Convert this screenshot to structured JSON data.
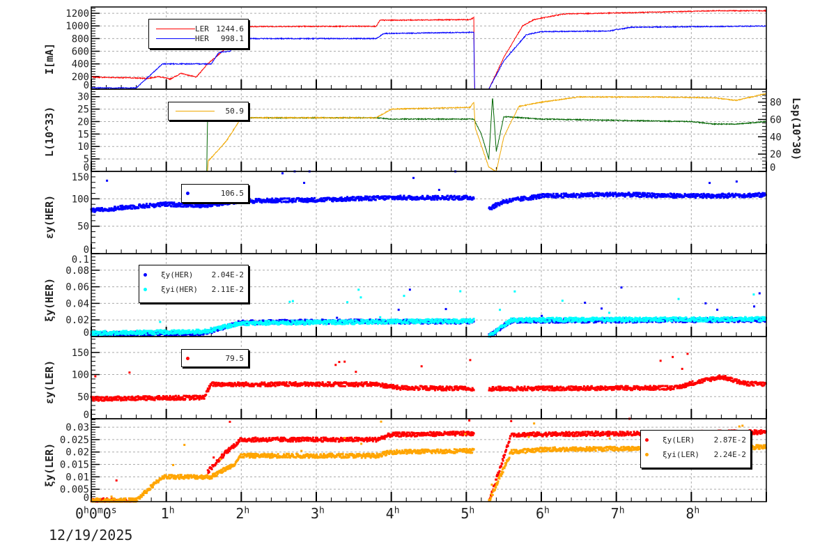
{
  "x_axis": {
    "unit": "h",
    "ticks": [
      "0",
      "1",
      "2",
      "3",
      "4",
      "5",
      "6",
      "7",
      "8"
    ],
    "origin_label": {
      "h": "0",
      "m": "0",
      "s": "0"
    },
    "date": "12/19/2025",
    "range_hours": [
      0,
      9
    ]
  },
  "chart_data": [
    {
      "type": "line",
      "ylabel": "I[mA]",
      "ylim": [
        0,
        1300
      ],
      "yticks": [
        0,
        200,
        400,
        600,
        800,
        1000,
        1200
      ],
      "legend": [
        {
          "name": "LER",
          "value": "1244.6",
          "color": "#ff0000"
        },
        {
          "name": "HER",
          "value": "998.1",
          "color": "#0000ff"
        }
      ],
      "series": [
        {
          "name": "LER",
          "color": "#ff0000",
          "points": [
            [
              0,
              190
            ],
            [
              0.5,
              180
            ],
            [
              0.75,
              170
            ],
            [
              0.9,
              200
            ],
            [
              1.05,
              160
            ],
            [
              1.2,
              250
            ],
            [
              1.4,
              190
            ],
            [
              1.55,
              400
            ],
            [
              1.75,
              600
            ],
            [
              1.9,
              800
            ],
            [
              2.0,
              990
            ],
            [
              3.8,
              995
            ],
            [
              3.85,
              1090
            ],
            [
              5.05,
              1100
            ],
            [
              5.1,
              1130
            ],
            [
              5.11,
              0
            ],
            [
              5.3,
              0
            ],
            [
              5.5,
              500
            ],
            [
              5.75,
              1000
            ],
            [
              5.9,
              1100
            ],
            [
              6.3,
              1190
            ],
            [
              7.2,
              1210
            ],
            [
              8.3,
              1240
            ],
            [
              9,
              1240
            ]
          ]
        },
        {
          "name": "HER",
          "color": "#0000ff",
          "points": [
            [
              0,
              20
            ],
            [
              0.6,
              20
            ],
            [
              0.95,
              400
            ],
            [
              1.6,
              400
            ],
            [
              1.7,
              580
            ],
            [
              1.85,
              600
            ],
            [
              2.0,
              800
            ],
            [
              3.8,
              800
            ],
            [
              3.9,
              880
            ],
            [
              5.1,
              900
            ],
            [
              5.11,
              0
            ],
            [
              5.3,
              0
            ],
            [
              5.5,
              450
            ],
            [
              5.8,
              860
            ],
            [
              6.0,
              910
            ],
            [
              6.9,
              920
            ],
            [
              7.2,
              980
            ],
            [
              9,
              998
            ]
          ]
        }
      ]
    },
    {
      "type": "line",
      "ylabel": "L(10^33)",
      "ylim": [
        0,
        33
      ],
      "yticks": [
        0,
        5,
        10,
        15,
        20,
        25,
        30
      ],
      "y2label": "Lsp(10^30)",
      "y2lim": [
        0,
        95
      ],
      "y2ticks": [
        0,
        20,
        40,
        60,
        80
      ],
      "legend": [
        {
          "name": "",
          "value": "50.9",
          "color": "#f0a800"
        }
      ],
      "series": [
        {
          "name": "",
          "axis": "left",
          "color": "#006400",
          "points": [
            [
              1.54,
              0
            ],
            [
              1.55,
              22
            ],
            [
              2.0,
              21.5
            ],
            [
              3.8,
              21.5
            ],
            [
              4.0,
              21
            ],
            [
              5.1,
              21
            ],
            [
              5.2,
              15
            ],
            [
              5.3,
              5
            ],
            [
              5.35,
              30
            ],
            [
              5.4,
              8
            ],
            [
              5.5,
              22
            ],
            [
              6.0,
              21
            ],
            [
              7.0,
              20.5
            ],
            [
              8.0,
              20
            ],
            [
              8.3,
              19
            ],
            [
              8.6,
              19
            ],
            [
              9,
              20
            ]
          ]
        },
        {
          "name": "",
          "axis": "right",
          "color": "#f0a800",
          "points": [
            [
              0,
              0
            ],
            [
              1.55,
              0
            ],
            [
              1.56,
              12
            ],
            [
              1.8,
              35
            ],
            [
              2.0,
              62
            ],
            [
              3.8,
              62
            ],
            [
              4.0,
              72
            ],
            [
              5.05,
              74
            ],
            [
              5.1,
              80
            ],
            [
              5.12,
              50
            ],
            [
              5.3,
              5
            ],
            [
              5.4,
              0
            ],
            [
              5.5,
              40
            ],
            [
              5.7,
              75
            ],
            [
              6.0,
              80
            ],
            [
              6.5,
              86
            ],
            [
              7.5,
              86
            ],
            [
              8.3,
              85
            ],
            [
              8.6,
              82
            ],
            [
              9,
              90
            ]
          ]
        }
      ]
    },
    {
      "type": "scatter",
      "ylabel": "εy(HER)",
      "ylim": [
        0,
        150
      ],
      "yticks": [
        0,
        50,
        100,
        150
      ],
      "legend": [
        {
          "name": "",
          "value": "106.5",
          "color": "#0000ff"
        }
      ],
      "series": [
        {
          "name": "",
          "color": "#0000ff",
          "points": [
            [
              0,
              78
            ],
            [
              0.5,
              85
            ],
            [
              1.0,
              90
            ],
            [
              1.5,
              88
            ],
            [
              2.0,
              96
            ],
            [
              3.0,
              98
            ],
            [
              4.0,
              102
            ],
            [
              5.1,
              102
            ],
            [
              5.12,
              null
            ],
            [
              5.3,
              82
            ],
            [
              5.5,
              95
            ],
            [
              6.0,
              105
            ],
            [
              7.0,
              108
            ],
            [
              8.0,
              105
            ],
            [
              9,
              107
            ]
          ]
        }
      ]
    },
    {
      "type": "scatter",
      "ylabel": "ξy(HER)",
      "ylim": [
        0,
        0.1
      ],
      "yticks": [
        0,
        0.02,
        0.04,
        0.06,
        0.08,
        0.1
      ],
      "legend": [
        {
          "name": "ξy(HER)",
          "value": "2.04E-2",
          "color": "#0000ff"
        },
        {
          "name": "ξyi(HER)",
          "value": "2.11E-2",
          "color": "#00ffff"
        }
      ],
      "series": [
        {
          "name": "ξy(HER)",
          "color": "#0000ff",
          "points": [
            [
              0,
              0.003
            ],
            [
              1.5,
              0.004
            ],
            [
              2.0,
              0.017
            ],
            [
              3.0,
              0.018
            ],
            [
              5.1,
              0.018
            ],
            [
              5.12,
              null
            ],
            [
              5.3,
              0
            ],
            [
              5.6,
              0.019
            ],
            [
              9,
              0.02
            ]
          ]
        },
        {
          "name": "ξyi(HER)",
          "color": "#00ffff",
          "points": [
            [
              0,
              0.004
            ],
            [
              1.5,
              0.006
            ],
            [
              2.0,
              0.016
            ],
            [
              3.0,
              0.017
            ],
            [
              5.1,
              0.019
            ],
            [
              5.12,
              null
            ],
            [
              5.3,
              0
            ],
            [
              5.6,
              0.02
            ],
            [
              9,
              0.021
            ]
          ]
        }
      ]
    },
    {
      "type": "scatter",
      "ylabel": "εy(LER)",
      "ylim": [
        0,
        186
      ],
      "yticks": [
        0,
        50,
        100,
        150
      ],
      "legend": [
        {
          "name": "",
          "value": "79.5",
          "color": "#ff0000"
        }
      ],
      "series": [
        {
          "name": "",
          "color": "#ff0000",
          "points": [
            [
              0,
              45
            ],
            [
              1.5,
              48
            ],
            [
              1.6,
              78
            ],
            [
              3.8,
              78
            ],
            [
              4.1,
              70
            ],
            [
              5.1,
              68
            ],
            [
              5.12,
              null
            ],
            [
              5.3,
              68
            ],
            [
              7.8,
              70
            ],
            [
              8.0,
              80
            ],
            [
              8.4,
              95
            ],
            [
              8.7,
              80
            ],
            [
              9,
              78
            ]
          ]
        }
      ]
    },
    {
      "type": "scatter",
      "ylabel": "ξy(LER)",
      "ylim": [
        0,
        0.0334
      ],
      "yticks": [
        0,
        0.005,
        0.01,
        0.015,
        0.02,
        0.025,
        0.03
      ],
      "legend": [
        {
          "name": "ξy(LER)",
          "value": "2.87E-2",
          "color": "#ff0000"
        },
        {
          "name": "ξyi(LER)",
          "value": "2.24E-2",
          "color": "#ffa500"
        }
      ],
      "series": [
        {
          "name": "ξy(LER)",
          "color": "#ff0000",
          "points": [
            [
              0,
              0.0005
            ],
            [
              0.6,
              0.0005
            ],
            [
              0.61,
              null
            ],
            [
              1.55,
              0.012
            ],
            [
              1.8,
              0.02
            ],
            [
              2.0,
              0.025
            ],
            [
              3.8,
              0.025
            ],
            [
              4.0,
              0.027
            ],
            [
              5.1,
              0.0275
            ],
            [
              5.12,
              null
            ],
            [
              5.3,
              0
            ],
            [
              5.6,
              0.027
            ],
            [
              9,
              0.028
            ]
          ]
        },
        {
          "name": "ξyi(LER)",
          "color": "#ffa500",
          "points": [
            [
              0,
              0.0005
            ],
            [
              0.6,
              0.0005
            ],
            [
              0.95,
              0.01
            ],
            [
              1.6,
              0.01
            ],
            [
              1.9,
              0.015
            ],
            [
              2.0,
              0.0185
            ],
            [
              3.8,
              0.0185
            ],
            [
              4.0,
              0.02
            ],
            [
              5.1,
              0.0205
            ],
            [
              5.12,
              null
            ],
            [
              5.3,
              0
            ],
            [
              5.6,
              0.02
            ],
            [
              6.0,
              0.021
            ],
            [
              9,
              0.022
            ]
          ]
        }
      ]
    }
  ]
}
